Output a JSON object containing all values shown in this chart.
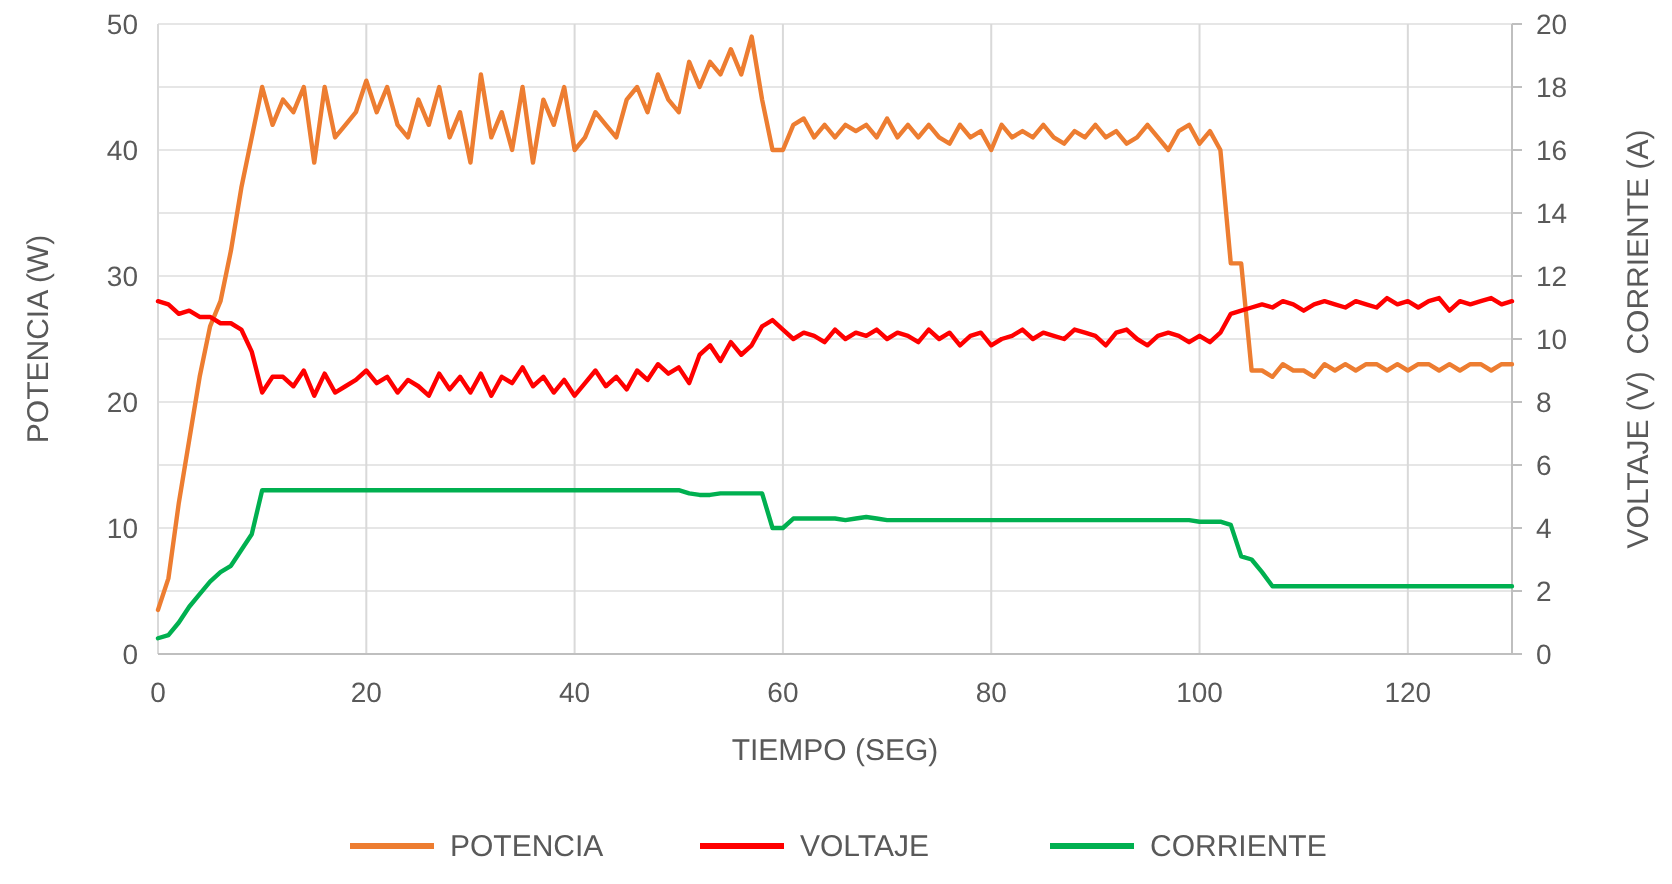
{
  "chart_data": {
    "type": "line",
    "xlabel": "TIEMPO (SEG)",
    "ylabel": "POTENCIA (W)",
    "y2label": "VOLTAJE (V)  CORRIENTE (A)",
    "x": [
      0,
      1,
      2,
      3,
      4,
      5,
      6,
      7,
      8,
      9,
      10,
      11,
      12,
      13,
      14,
      15,
      16,
      17,
      18,
      19,
      20,
      21,
      22,
      23,
      24,
      25,
      26,
      27,
      28,
      29,
      30,
      31,
      32,
      33,
      34,
      35,
      36,
      37,
      38,
      39,
      40,
      41,
      42,
      43,
      44,
      45,
      46,
      47,
      48,
      49,
      50,
      51,
      52,
      53,
      54,
      55,
      56,
      57,
      58,
      59,
      60,
      61,
      62,
      63,
      64,
      65,
      66,
      67,
      68,
      69,
      70,
      71,
      72,
      73,
      74,
      75,
      76,
      77,
      78,
      79,
      80,
      81,
      82,
      83,
      84,
      85,
      86,
      87,
      88,
      89,
      90,
      91,
      92,
      93,
      94,
      95,
      96,
      97,
      98,
      99,
      100,
      101,
      102,
      103,
      104,
      105,
      106,
      107,
      108,
      109,
      110,
      111,
      112,
      113,
      114,
      115,
      116,
      117,
      118,
      119,
      120,
      121,
      122,
      123,
      124,
      125,
      126,
      127,
      128,
      129,
      130
    ],
    "xlim": [
      0,
      130
    ],
    "xticks": [
      0,
      20,
      40,
      60,
      80,
      100,
      120
    ],
    "ylim": [
      0,
      50
    ],
    "yticks": [
      0,
      10,
      20,
      30,
      40,
      50
    ],
    "y2lim": [
      0,
      20
    ],
    "y2ticks": [
      0,
      2,
      4,
      6,
      8,
      10,
      12,
      14,
      16,
      18,
      20
    ],
    "grid": true,
    "legend": "bottom",
    "line_style": "solid",
    "marker": "none",
    "series": [
      {
        "name": "POTENCIA",
        "color": "#ed7d31",
        "values": [
          3.5,
          6,
          12,
          17,
          22,
          26,
          28,
          32,
          37,
          41,
          45,
          42,
          44,
          43,
          45,
          39,
          45,
          41,
          42,
          43,
          45.5,
          43,
          45,
          42,
          41,
          44,
          42,
          45,
          41,
          43,
          39,
          46,
          41,
          43,
          40,
          45,
          39,
          44,
          42,
          45,
          40,
          41,
          43,
          42,
          41,
          44,
          45,
          43,
          46,
          44,
          43,
          47,
          45,
          47,
          46,
          48,
          46,
          49,
          44,
          40,
          40,
          42,
          42.5,
          41,
          42,
          41,
          42,
          41.5,
          42,
          41,
          42.5,
          41,
          42,
          41,
          42,
          41,
          40.5,
          42,
          41,
          41.5,
          40,
          42,
          41,
          41.5,
          41,
          42,
          41,
          40.5,
          41.5,
          41,
          42,
          41,
          41.5,
          40.5,
          41,
          42,
          41,
          40,
          41.5,
          42,
          40.5,
          41.5,
          40,
          31,
          31,
          22.5,
          22.5,
          22,
          23,
          22.5,
          22.5,
          22,
          23,
          22.5,
          23,
          22.5,
          23,
          23,
          22.5,
          23,
          22.5,
          23,
          23,
          22.5,
          23,
          22.5,
          23,
          23,
          22.5,
          23,
          23
        ]
      },
      {
        "name": "VOLTAJE",
        "color": "#ff0000",
        "axis": "y2",
        "values": [
          11.2,
          11.1,
          10.8,
          10.9,
          10.7,
          10.7,
          10.5,
          10.5,
          10.3,
          9.6,
          8.3,
          8.8,
          8.8,
          8.5,
          9,
          8.2,
          8.9,
          8.3,
          8.5,
          8.7,
          9,
          8.6,
          8.8,
          8.3,
          8.7,
          8.5,
          8.2,
          8.9,
          8.4,
          8.8,
          8.3,
          8.9,
          8.2,
          8.8,
          8.6,
          9.1,
          8.5,
          8.8,
          8.3,
          8.7,
          8.2,
          8.6,
          9,
          8.5,
          8.8,
          8.4,
          9,
          8.7,
          9.2,
          8.9,
          9.1,
          8.6,
          9.5,
          9.8,
          9.3,
          9.9,
          9.5,
          9.8,
          10.4,
          10.6,
          10.3,
          10,
          10.2,
          10.1,
          9.9,
          10.3,
          10,
          10.2,
          10.1,
          10.3,
          10,
          10.2,
          10.1,
          9.9,
          10.3,
          10,
          10.2,
          9.8,
          10.1,
          10.2,
          9.8,
          10,
          10.1,
          10.3,
          10,
          10.2,
          10.1,
          10,
          10.3,
          10.2,
          10.1,
          9.8,
          10.2,
          10.3,
          10,
          9.8,
          10.1,
          10.2,
          10.1,
          9.9,
          10.1,
          9.9,
          10.2,
          10.8,
          10.9,
          11,
          11.1,
          11,
          11.2,
          11.1,
          10.9,
          11.1,
          11.2,
          11.1,
          11,
          11.2,
          11.1,
          11,
          11.3,
          11.1,
          11.2,
          11,
          11.2,
          11.3,
          10.9,
          11.2,
          11.1,
          11.2,
          11.3,
          11.1,
          11.2
        ]
      },
      {
        "name": "CORRIENTE",
        "color": "#00b050",
        "axis": "y2",
        "values": [
          0.5,
          0.6,
          1,
          1.5,
          1.9,
          2.3,
          2.6,
          2.8,
          3.3,
          3.8,
          5.2,
          5.2,
          5.2,
          5.2,
          5.2,
          5.2,
          5.2,
          5.2,
          5.2,
          5.2,
          5.2,
          5.2,
          5.2,
          5.2,
          5.2,
          5.2,
          5.2,
          5.2,
          5.2,
          5.2,
          5.2,
          5.2,
          5.2,
          5.2,
          5.2,
          5.2,
          5.2,
          5.2,
          5.2,
          5.2,
          5.2,
          5.2,
          5.2,
          5.2,
          5.2,
          5.2,
          5.2,
          5.2,
          5.2,
          5.2,
          5.2,
          5.1,
          5.05,
          5.05,
          5.1,
          5.1,
          5.1,
          5.1,
          5.1,
          4,
          4,
          4.3,
          4.3,
          4.3,
          4.3,
          4.3,
          4.25,
          4.3,
          4.35,
          4.3,
          4.25,
          4.25,
          4.25,
          4.25,
          4.25,
          4.25,
          4.25,
          4.25,
          4.25,
          4.25,
          4.25,
          4.25,
          4.25,
          4.25,
          4.25,
          4.25,
          4.25,
          4.25,
          4.25,
          4.25,
          4.25,
          4.25,
          4.25,
          4.25,
          4.25,
          4.25,
          4.25,
          4.25,
          4.25,
          4.25,
          4.2,
          4.2,
          4.2,
          4.1,
          3.1,
          3,
          2.6,
          2.15,
          2.15,
          2.15,
          2.15,
          2.15,
          2.15,
          2.15,
          2.15,
          2.15,
          2.15,
          2.15,
          2.15,
          2.15,
          2.15,
          2.15,
          2.15,
          2.15,
          2.15,
          2.15,
          2.15,
          2.15,
          2.15,
          2.15,
          2.15
        ]
      }
    ]
  }
}
